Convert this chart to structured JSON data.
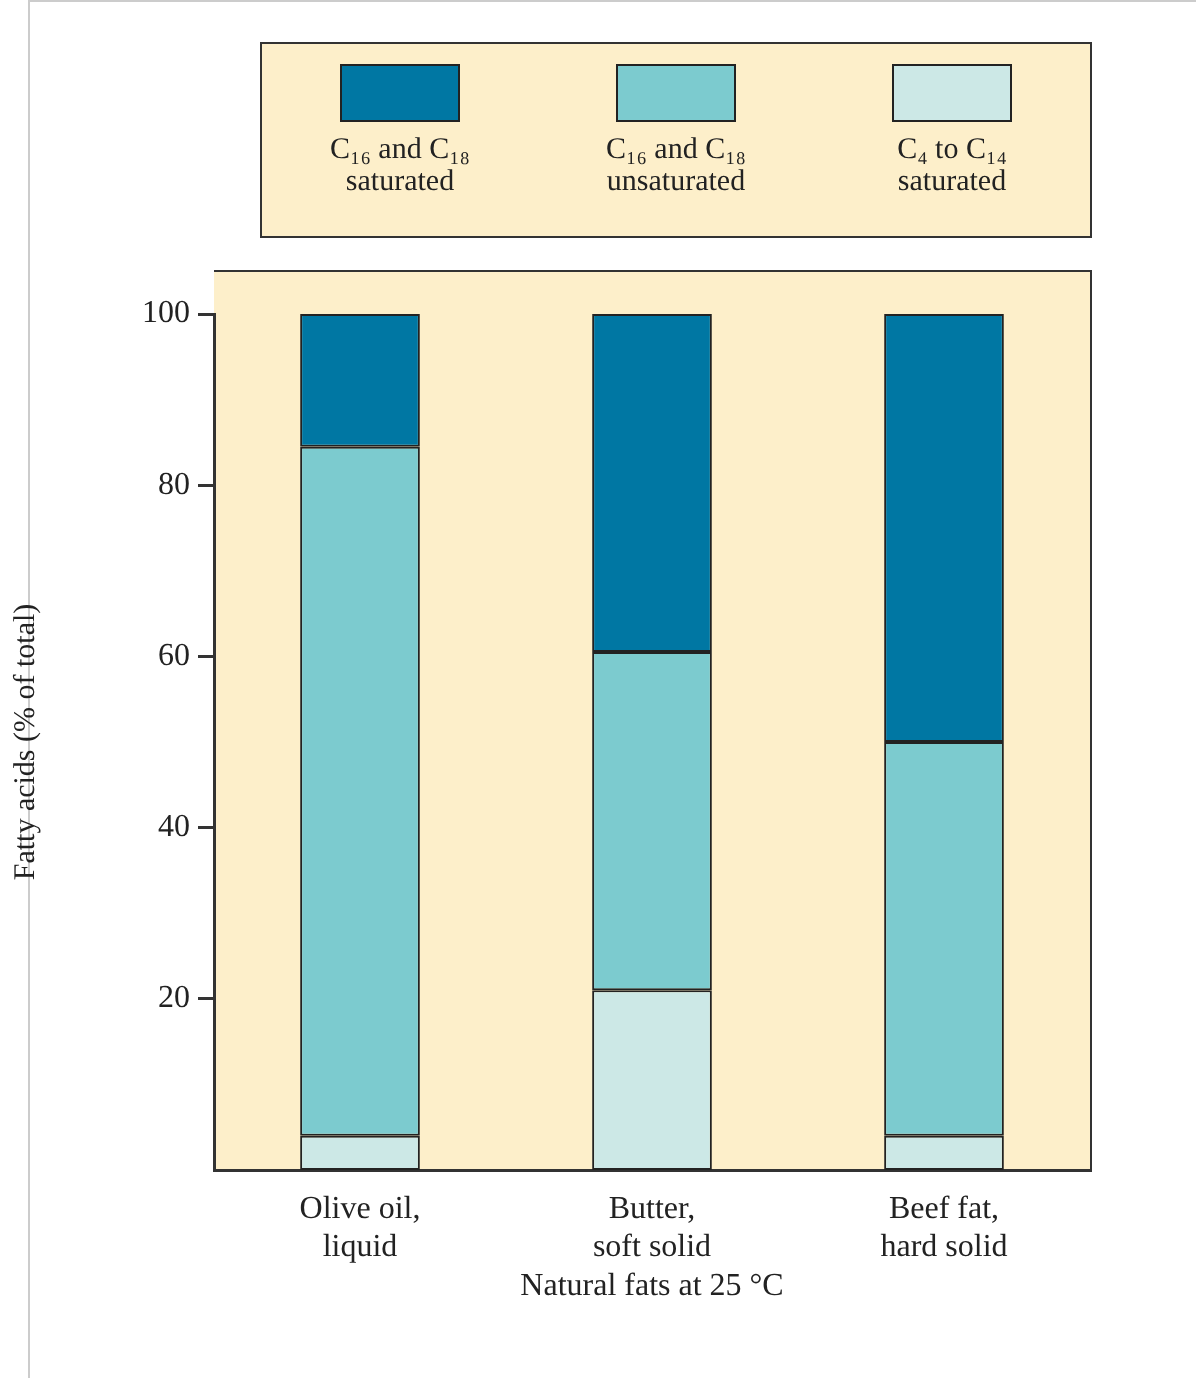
{
  "chart_data": {
    "type": "bar",
    "stacked": true,
    "xlabel": "Natural fats at 25 °C",
    "ylabel": "Fatty acids (% of total)",
    "categories": [
      "Olive oil, liquid",
      "Butter, soft solid",
      "Beef fat, hard solid"
    ],
    "series": [
      {
        "name": "C₄ to C₁₄ saturated",
        "color": "#cce8e6",
        "values": [
          4,
          21,
          4
        ]
      },
      {
        "name": "C₁₆ and C₁₈ unsaturated",
        "color": "#7ccbcf",
        "values": [
          80.5,
          39.5,
          46
        ]
      },
      {
        "name": "C₁₆ and C₁₈ saturated",
        "color": "#0077a3",
        "values": [
          15.5,
          39.5,
          50
        ]
      }
    ],
    "ylim": [
      0,
      100
    ],
    "yticks": [
      20,
      40,
      60,
      80,
      100
    ],
    "grid": false,
    "legend": "top"
  }
}
